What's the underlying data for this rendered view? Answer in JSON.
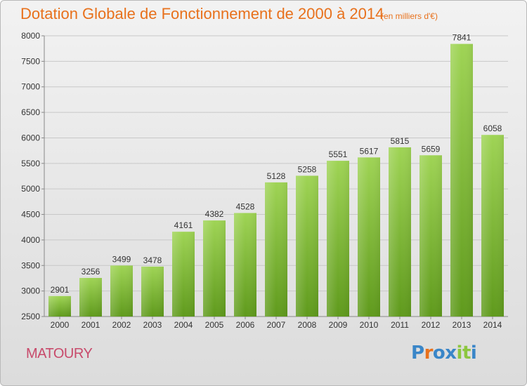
{
  "header": {
    "title": "Dotation Globale de Fonctionnement de 2000 à 2014",
    "subtitle": "(en milliers d'€)"
  },
  "place_name": "MATOURY",
  "logo": {
    "letters": [
      "P",
      "r",
      "o",
      "x",
      "i",
      "t",
      "i"
    ],
    "colors": [
      "#3a86c8",
      "#e8711c",
      "#3a86c8",
      "#3a86c8",
      "#8cc63f",
      "#8cc63f",
      "#3a86c8"
    ]
  },
  "colors": {
    "title": "#e8711c",
    "place": "#c84a6b",
    "bar_light": "#9fd455",
    "bar_dark": "#5f9a1c",
    "grid": "#c8c8c8"
  },
  "chart_data": {
    "type": "bar",
    "title": "Dotation Globale de Fonctionnement de 2000 à 2014",
    "subtitle": "(en milliers d'€)",
    "xlabel": "",
    "ylabel": "",
    "categories": [
      "2000",
      "2001",
      "2002",
      "2003",
      "2004",
      "2005",
      "2006",
      "2007",
      "2008",
      "2009",
      "2010",
      "2011",
      "2012",
      "2013",
      "2014"
    ],
    "values": [
      2901,
      3256,
      3499,
      3478,
      4161,
      4382,
      4528,
      5128,
      5258,
      5551,
      5617,
      5815,
      5659,
      7841,
      6058
    ],
    "ylim": [
      2500,
      8000
    ],
    "yticks": [
      2500,
      3000,
      3500,
      4000,
      4500,
      5000,
      5500,
      6000,
      6500,
      7000,
      7500,
      8000
    ],
    "grid": true,
    "legend": "none"
  }
}
